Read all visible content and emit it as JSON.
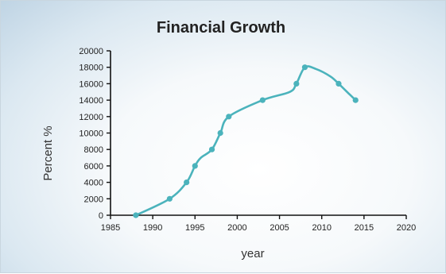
{
  "chart_data": {
    "type": "line",
    "title": "Financial Growth",
    "xlabel": "year",
    "ylabel": "Percent %",
    "xlim": [
      1985,
      2020
    ],
    "ylim": [
      0,
      20000
    ],
    "x_ticks": [
      1985,
      1990,
      1995,
      2000,
      2005,
      2010,
      2015,
      2020
    ],
    "y_ticks": [
      0,
      2000,
      4000,
      6000,
      8000,
      10000,
      12000,
      14000,
      16000,
      18000,
      20000
    ],
    "grid": false,
    "legend": "none",
    "series": [
      {
        "color": "#4bb3bc",
        "markers": [
          {
            "x": 1988,
            "y": 0
          },
          {
            "x": 1992,
            "y": 2000
          },
          {
            "x": 1994,
            "y": 4000
          },
          {
            "x": 1995,
            "y": 6000
          },
          {
            "x": 1997,
            "y": 8000
          },
          {
            "x": 1998,
            "y": 10000
          },
          {
            "x": 1999,
            "y": 12000
          },
          {
            "x": 2003,
            "y": 14000
          },
          {
            "x": 2007,
            "y": 16000
          },
          {
            "x": 2008,
            "y": 18000
          },
          {
            "x": 2012,
            "y": 16000
          },
          {
            "x": 2014,
            "y": 14000
          }
        ],
        "line": [
          {
            "x": 1988,
            "y": 0
          },
          {
            "x": 1992,
            "y": 2000
          },
          {
            "x": 1994,
            "y": 4000
          },
          {
            "x": 1995,
            "y": 6000
          },
          {
            "x": 1995.7,
            "y": 7000
          },
          {
            "x": 1997,
            "y": 8000
          },
          {
            "x": 1998,
            "y": 10000
          },
          {
            "x": 1999,
            "y": 12000
          },
          {
            "x": 2003,
            "y": 14000
          },
          {
            "x": 2006.2,
            "y": 15000
          },
          {
            "x": 2007,
            "y": 16000
          },
          {
            "x": 2008,
            "y": 18000
          },
          {
            "x": 2009.3,
            "y": 17800
          },
          {
            "x": 2011,
            "y": 16900
          },
          {
            "x": 2012,
            "y": 16000
          },
          {
            "x": 2013,
            "y": 15000
          },
          {
            "x": 2014,
            "y": 14000
          }
        ]
      }
    ]
  }
}
